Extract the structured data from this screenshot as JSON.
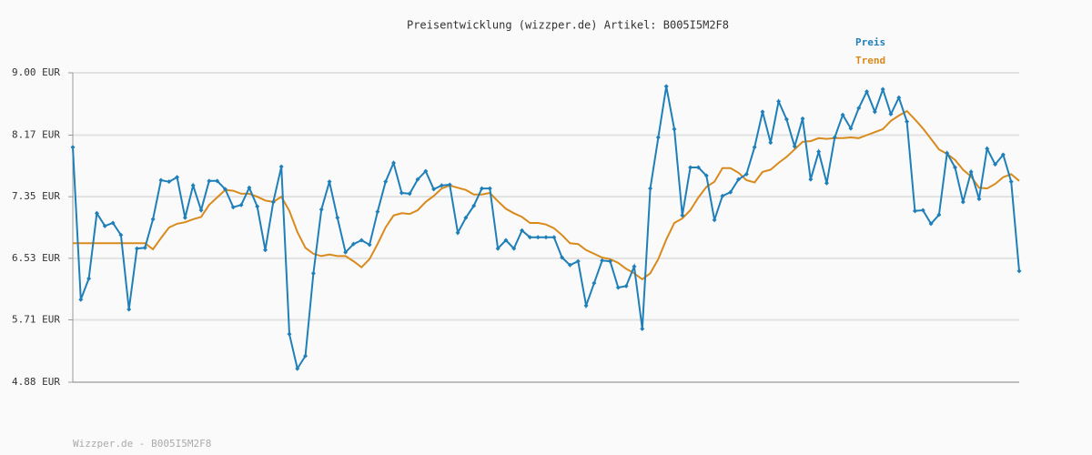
{
  "chart_data": {
    "type": "line",
    "title": "Preisentwicklung (wizzper.de) Artikel: B005I5M2F8",
    "footer": "Wizzper.de - B005I5M2F8",
    "categories": [
      null,
      null,
      null,
      null,
      null,
      null,
      null,
      null,
      null,
      null,
      null,
      null,
      null,
      null,
      null,
      null,
      null,
      null,
      null,
      null,
      null,
      null,
      null,
      null,
      null,
      null,
      null,
      null,
      null,
      null,
      null,
      null,
      null,
      null,
      null,
      null,
      null,
      null,
      null,
      null,
      null,
      null,
      null,
      null,
      null,
      null,
      null,
      null,
      null,
      null,
      null,
      null,
      null,
      null,
      null,
      null,
      null,
      null,
      null,
      null,
      null,
      null,
      null,
      null,
      null,
      null,
      null,
      null,
      null,
      null,
      null,
      null,
      null,
      null,
      null,
      null,
      null,
      null,
      null,
      null,
      null,
      null,
      null,
      null,
      null,
      null,
      null,
      null,
      null,
      null,
      null,
      null,
      null,
      null,
      null,
      null,
      null,
      null,
      null,
      null,
      null,
      null,
      null,
      null,
      null,
      null,
      null,
      null,
      null,
      null,
      null,
      null,
      null,
      null,
      null,
      null,
      null,
      null,
      null
    ],
    "ylim": [
      4.88,
      9.0
    ],
    "yticks": [
      {
        "value": 4.88,
        "label": "4.88 EUR"
      },
      {
        "value": 5.71,
        "label": "5.71 EUR"
      },
      {
        "value": 6.53,
        "label": "6.53 EUR"
      },
      {
        "value": 7.35,
        "label": "7.35 EUR"
      },
      {
        "value": 8.17,
        "label": "8.17 EUR"
      },
      {
        "value": 9.0,
        "label": "9.00 EUR"
      }
    ],
    "grid": true,
    "legend": "top-right",
    "series": [
      {
        "name": "Preis",
        "color": "#1f7fb8",
        "markers": true,
        "values": [
          8.01,
          5.98,
          6.26,
          7.13,
          6.96,
          7.0,
          6.84,
          5.85,
          6.66,
          6.67,
          7.05,
          7.57,
          7.55,
          7.61,
          7.07,
          7.5,
          7.17,
          7.56,
          7.56,
          7.45,
          7.21,
          7.24,
          7.47,
          7.22,
          6.64,
          7.28,
          7.75,
          5.52,
          5.06,
          5.23,
          6.33,
          7.18,
          7.55,
          7.07,
          6.61,
          6.72,
          6.77,
          6.71,
          7.15,
          7.55,
          7.8,
          7.4,
          7.39,
          7.58,
          7.69,
          7.45,
          7.5,
          7.51,
          6.87,
          7.07,
          7.23,
          7.46,
          7.46,
          6.66,
          6.77,
          6.66,
          6.9,
          6.81,
          6.81,
          6.81,
          6.81,
          6.54,
          6.44,
          6.49,
          5.9,
          6.2,
          6.5,
          6.49,
          6.14,
          6.16,
          6.42,
          5.59,
          7.46,
          8.14,
          8.82,
          8.25,
          7.1,
          7.74,
          7.74,
          7.63,
          7.04,
          7.36,
          7.41,
          7.58,
          7.65,
          8.01,
          8.48,
          8.07,
          8.62,
          8.38,
          8.02,
          8.39,
          7.58,
          7.95,
          7.53,
          8.14,
          8.44,
          8.26,
          8.53,
          8.75,
          8.48,
          8.78,
          8.45,
          8.67,
          8.35,
          7.16,
          7.17,
          6.99,
          7.11,
          7.93,
          7.74,
          7.28,
          7.68,
          7.32,
          7.99,
          7.78,
          7.91,
          7.55,
          6.36
        ]
      },
      {
        "name": "Trend",
        "color": "#d98a1c",
        "markers": false,
        "values": [
          6.73,
          6.73,
          6.73,
          6.73,
          6.73,
          6.73,
          6.73,
          6.73,
          6.73,
          6.73,
          6.65,
          6.8,
          6.94,
          6.99,
          7.01,
          7.05,
          7.08,
          7.24,
          7.34,
          7.44,
          7.43,
          7.39,
          7.39,
          7.35,
          7.3,
          7.28,
          7.35,
          7.16,
          6.88,
          6.67,
          6.59,
          6.56,
          6.58,
          6.56,
          6.56,
          6.49,
          6.41,
          6.52,
          6.72,
          6.94,
          7.1,
          7.13,
          7.12,
          7.17,
          7.28,
          7.36,
          7.46,
          7.5,
          7.47,
          7.44,
          7.38,
          7.38,
          7.4,
          7.29,
          7.19,
          7.13,
          7.08,
          7.0,
          7.0,
          6.98,
          6.93,
          6.84,
          6.73,
          6.72,
          6.64,
          6.59,
          6.54,
          6.52,
          6.47,
          6.39,
          6.33,
          6.25,
          6.33,
          6.52,
          6.78,
          7.0,
          7.06,
          7.17,
          7.34,
          7.48,
          7.55,
          7.73,
          7.73,
          7.67,
          7.57,
          7.54,
          7.68,
          7.71,
          7.8,
          7.88,
          7.98,
          8.08,
          8.09,
          8.13,
          8.12,
          8.13,
          8.13,
          8.14,
          8.13,
          8.17,
          8.21,
          8.25,
          8.36,
          8.43,
          8.49,
          8.38,
          8.26,
          8.12,
          7.98,
          7.92,
          7.84,
          7.71,
          7.62,
          7.47,
          7.46,
          7.52,
          7.61,
          7.65,
          7.56
        ]
      }
    ]
  }
}
